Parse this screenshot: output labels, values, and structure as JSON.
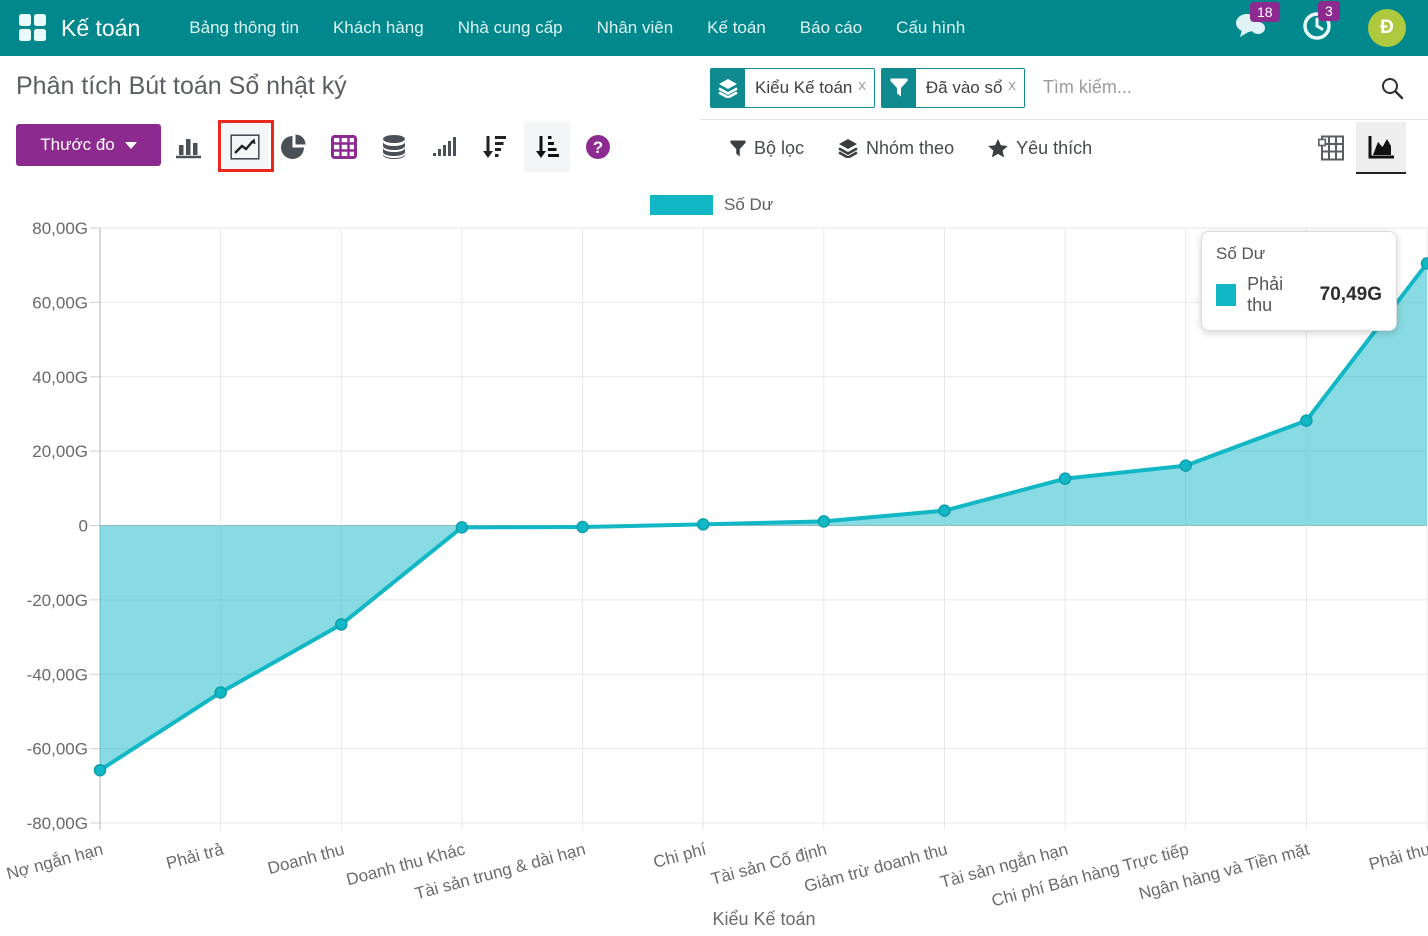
{
  "nav": {
    "brand": "Kế toán",
    "items": [
      "Bảng thông tin",
      "Khách hàng",
      "Nhà cung cấp",
      "Nhân viên",
      "Kế toán",
      "Báo cáo",
      "Cấu hình"
    ],
    "messages_badge": "18",
    "activities_badge": "3",
    "avatar_initial": "Đ"
  },
  "page_title": "Phân tích Bút toán Sổ nhật ký",
  "search": {
    "facets": [
      {
        "label": "Kiểu Kế toán",
        "icon": "group-by-icon",
        "remove": "x"
      },
      {
        "label": "Đã vào sổ",
        "icon": "filter-icon",
        "remove": "x"
      }
    ],
    "placeholder": "Tìm kiếm..."
  },
  "toolbar": {
    "measures_label": "Thước đo",
    "filters_label": "Bộ lọc",
    "groupby_label": "Nhóm theo",
    "favorites_label": "Yêu thích"
  },
  "tooltip": {
    "title": "Số Dư",
    "series": "Phải thu",
    "value": "70,49G"
  },
  "colors": {
    "nav_teal": "#00888D",
    "purple": "#8D2A8F",
    "line": "#12B7C6",
    "fill": "rgba(18,183,198,0.5)",
    "annotation_red": "#E8271F",
    "avatar_green": "#AFC93E"
  },
  "chart_data": {
    "type": "area",
    "legend": [
      {
        "label": "Số Dư",
        "color": "#12B7C6"
      }
    ],
    "categories": [
      "Nợ ngắn hạn",
      "Phải trả",
      "Doanh thu",
      "Doanh thu Khác",
      "Tài sản trung & dài hạn",
      "Chi phí",
      "Tài sản Cố định",
      "Giảm trừ doanh thu",
      "Tài sản ngắn hạn",
      "Chi phí Bán hàng Trực tiếp",
      "Ngân hàng và Tiền mặt",
      "Phải thu"
    ],
    "series": [
      {
        "name": "Số Dư",
        "values": [
          -65.8,
          -44.9,
          -26.6,
          -0.5,
          -0.4,
          0.3,
          1.1,
          4.0,
          12.6,
          16.1,
          28.2,
          70.49
        ]
      }
    ],
    "unit": "G",
    "xlabel": "Kiểu Kế toán",
    "ylabel": "",
    "ylim": [
      -80,
      80
    ],
    "y_tick_values": [
      80,
      60,
      40,
      20,
      0,
      -20,
      -40,
      -60,
      -80
    ],
    "y_tick_labels": [
      "80,00G",
      "60,00G",
      "40,00G",
      "20,00G",
      "0",
      "-20,00G",
      "-40,00G",
      "-60,00G",
      "-80,00G"
    ],
    "grid": true,
    "legend_position": "top",
    "highlighted_point": {
      "category": "Phải thu",
      "series": "Số Dư",
      "value_label": "70,49G"
    }
  }
}
